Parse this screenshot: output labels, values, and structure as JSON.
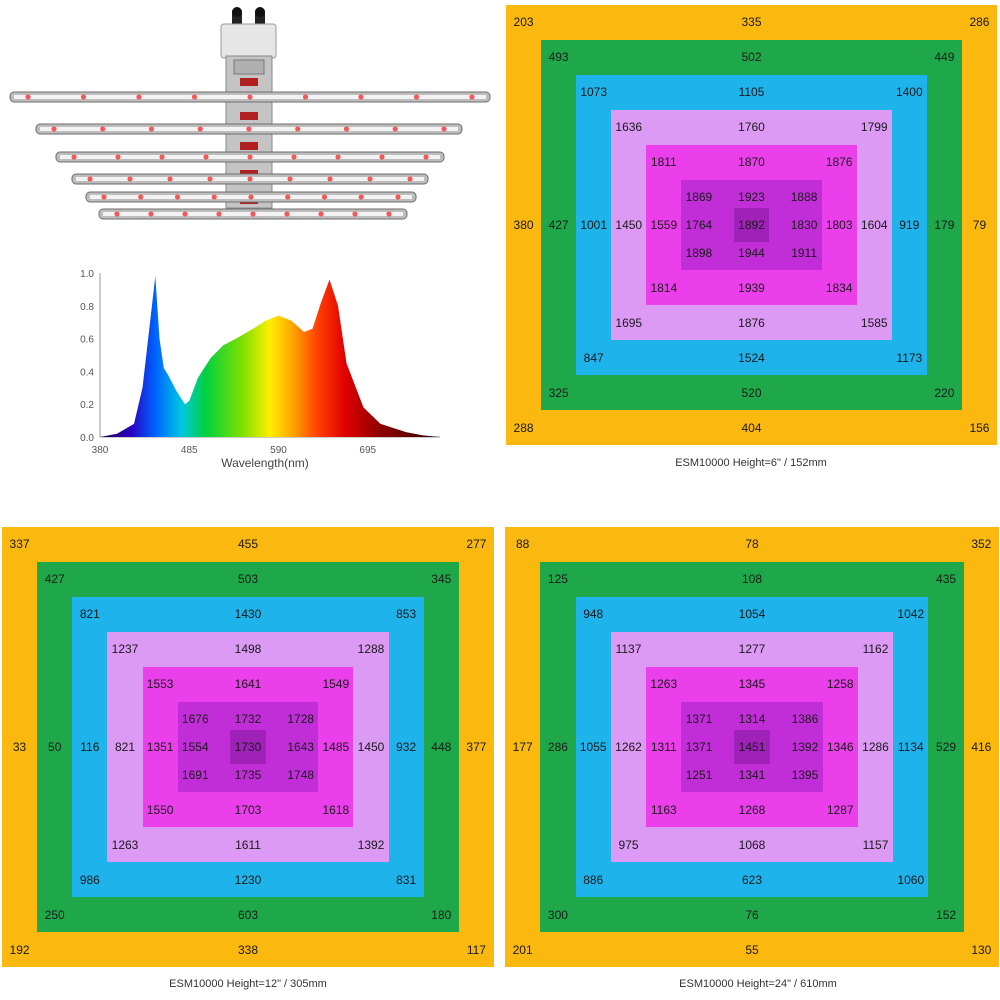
{
  "colors": {
    "ring_0": "#fbb80f",
    "ring_1": "#1fa84a",
    "ring_2": "#1fb3ec",
    "ring_3": "#dc9af5",
    "ring_4": "#ec3fec",
    "ring_5": "#c12ed8",
    "ring_6": "#a021b8"
  },
  "chart_data": [
    {
      "type": "area",
      "title": "",
      "xlabel": "Wavelength(nm)",
      "ylabel": "",
      "x_ticks": [
        "380",
        "485",
        "590",
        "695"
      ],
      "y_ticks": [
        "0.0",
        "0.2",
        "0.4",
        "0.6",
        "0.8",
        "1.0"
      ],
      "xlim": [
        380,
        780
      ],
      "ylim": [
        0,
        1.0
      ],
      "x": [
        380,
        400,
        420,
        430,
        440,
        445,
        450,
        455,
        460,
        470,
        480,
        485,
        495,
        510,
        525,
        540,
        560,
        575,
        590,
        605,
        620,
        630,
        640,
        650,
        660,
        670,
        690,
        710,
        740,
        760,
        780
      ],
      "y": [
        0.0,
        0.02,
        0.08,
        0.3,
        0.75,
        0.98,
        0.6,
        0.42,
        0.38,
        0.28,
        0.2,
        0.22,
        0.36,
        0.48,
        0.56,
        0.6,
        0.66,
        0.71,
        0.74,
        0.71,
        0.64,
        0.66,
        0.82,
        0.96,
        0.8,
        0.45,
        0.18,
        0.08,
        0.03,
        0.01,
        0.0
      ]
    },
    {
      "type": "heatmap",
      "caption": "ESM10000 Height=6\" / 152mm",
      "ring_labels": [
        {
          "top": [
            "203",
            "335",
            "286"
          ],
          "bottom": [
            "288",
            "404",
            "156"
          ],
          "left": "380",
          "right": "79"
        },
        {
          "top": [
            "493",
            "502",
            "449"
          ],
          "bottom": [
            "325",
            "520",
            "220"
          ],
          "left": "427",
          "right": "179"
        },
        {
          "top": [
            "1073",
            "1105",
            "1400"
          ],
          "bottom": [
            "847",
            "1524",
            "1173"
          ],
          "left": "1001",
          "right": "919"
        },
        {
          "top": [
            "1636",
            "1760",
            "1799"
          ],
          "bottom": [
            "1695",
            "1876",
            "1585"
          ],
          "left": "1450",
          "right": "1604"
        },
        {
          "top": [
            "1811",
            "1870",
            "1876"
          ],
          "bottom": [
            "1814",
            "1939",
            "1834"
          ],
          "left": "1559",
          "right": "1803"
        },
        {
          "top": [
            "1869",
            "1923",
            "1888"
          ],
          "bottom": [
            "1898",
            "1944",
            "1911"
          ],
          "left": "1764",
          "right": "1830"
        }
      ],
      "center": "1892"
    },
    {
      "type": "heatmap",
      "caption": "ESM10000  Height=12\" / 305mm",
      "ring_labels": [
        {
          "top": [
            "337",
            "455",
            "277"
          ],
          "bottom": [
            "192",
            "338",
            "117"
          ],
          "left": "33",
          "right": "377"
        },
        {
          "top": [
            "427",
            "503",
            "345"
          ],
          "bottom": [
            "250",
            "603",
            "180"
          ],
          "left": "50",
          "right": "448"
        },
        {
          "top": [
            "821",
            "1430",
            "853"
          ],
          "bottom": [
            "986",
            "1230",
            "831"
          ],
          "left": "116",
          "right": "932"
        },
        {
          "top": [
            "1237",
            "1498",
            "1288"
          ],
          "bottom": [
            "1263",
            "1611",
            "1392"
          ],
          "left": "821",
          "right": "1450"
        },
        {
          "top": [
            "1553",
            "1641",
            "1549"
          ],
          "bottom": [
            "1550",
            "1703",
            "1618"
          ],
          "left": "1351",
          "right": "1485"
        },
        {
          "top": [
            "1676",
            "1732",
            "1728"
          ],
          "bottom": [
            "1691",
            "1735",
            "1748"
          ],
          "left": "1554",
          "right": "1643"
        }
      ],
      "center": "1730"
    },
    {
      "type": "heatmap",
      "caption": "ESM10000  Height=24\" / 610mm",
      "ring_labels": [
        {
          "top": [
            "88",
            "78",
            "352"
          ],
          "bottom": [
            "201",
            "55",
            "130"
          ],
          "left": "177",
          "right": "416"
        },
        {
          "top": [
            "125",
            "108",
            "435"
          ],
          "bottom": [
            "300",
            "76",
            "152"
          ],
          "left": "286",
          "right": "529"
        },
        {
          "top": [
            "948",
            "1054",
            "1042"
          ],
          "bottom": [
            "886",
            "623",
            "1060"
          ],
          "left": "1055",
          "right": "1134"
        },
        {
          "top": [
            "1137",
            "1277",
            "1162"
          ],
          "bottom": [
            "975",
            "1068",
            "1157"
          ],
          "left": "1262",
          "right": "1286"
        },
        {
          "top": [
            "1263",
            "1345",
            "1258"
          ],
          "bottom": [
            "1163",
            "1268",
            "1287"
          ],
          "left": "1311",
          "right": "1346"
        },
        {
          "top": [
            "1371",
            "1314",
            "1386"
          ],
          "bottom": [
            "1251",
            "1341",
            "1395"
          ],
          "left": "1371",
          "right": "1392"
        }
      ],
      "center": "1451"
    }
  ]
}
